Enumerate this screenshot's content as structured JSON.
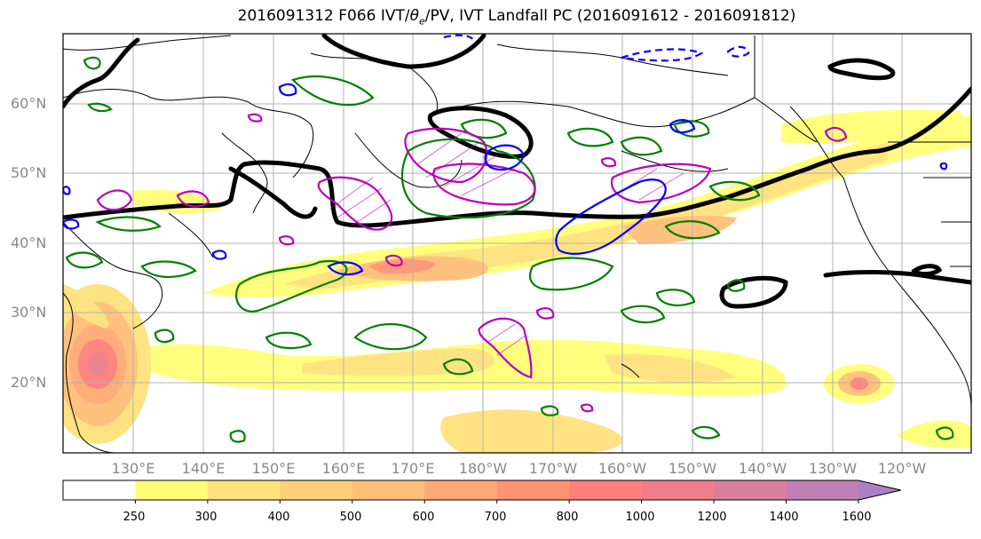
{
  "title_prefix": "2016091312 F066 IVT/",
  "title_theta": "θ",
  "title_theta_sub": "e",
  "title_suffix": "/PV, IVT Landfall PC (2016091612 - 2016091812)",
  "lat_labels": [
    "60°N",
    "50°N",
    "40°N",
    "30°N",
    "20°N"
  ],
  "lon_labels": [
    "130°E",
    "140°E",
    "150°E",
    "160°E",
    "170°E",
    "180°W",
    "170°W",
    "160°W",
    "150°W",
    "140°W",
    "130°W",
    "120°W"
  ],
  "colorbar": {
    "levels": [
      "250",
      "300",
      "400",
      "500",
      "600",
      "700",
      "800",
      "1000",
      "1200",
      "1400",
      "1600"
    ],
    "colors": [
      "#ffffff",
      "#ffff77",
      "#ffe27c",
      "#ffd07a",
      "#ffbf78",
      "#ffa974",
      "#ff9472",
      "#ff7f7b",
      "#ee7f89",
      "#d97f9d",
      "#c180b3",
      "#aa80c8"
    ]
  },
  "contour_colors": {
    "pv": "#000000",
    "theta_e": "#008000",
    "pos_pc": "#bb00bb",
    "neg_pc": "#0000ff"
  }
}
